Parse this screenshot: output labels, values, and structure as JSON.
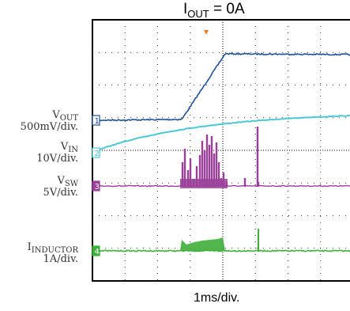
{
  "chart_data": {
    "type": "line",
    "title_main": "I",
    "title_sub": "OUT",
    "title_rest": " = 0A",
    "xlabel": "1ms/div.",
    "grid": true,
    "channels": [
      {
        "id": "1",
        "color": "#1f4f9a",
        "name_main": "V",
        "name_sub": "OUT",
        "scale": "500mV/div."
      },
      {
        "id": "2",
        "color": "#4cc8d2",
        "name_main": "V",
        "name_sub": "IN",
        "scale": "10V/div."
      },
      {
        "id": "3",
        "color": "#9a3f9a",
        "name_main": "V",
        "name_sub": "SW",
        "scale": "5V/div."
      },
      {
        "id": "4",
        "color": "#3fae3a",
        "name_main": "I",
        "name_sub": "INDUCTOR",
        "scale": "1A/div."
      }
    ]
  }
}
